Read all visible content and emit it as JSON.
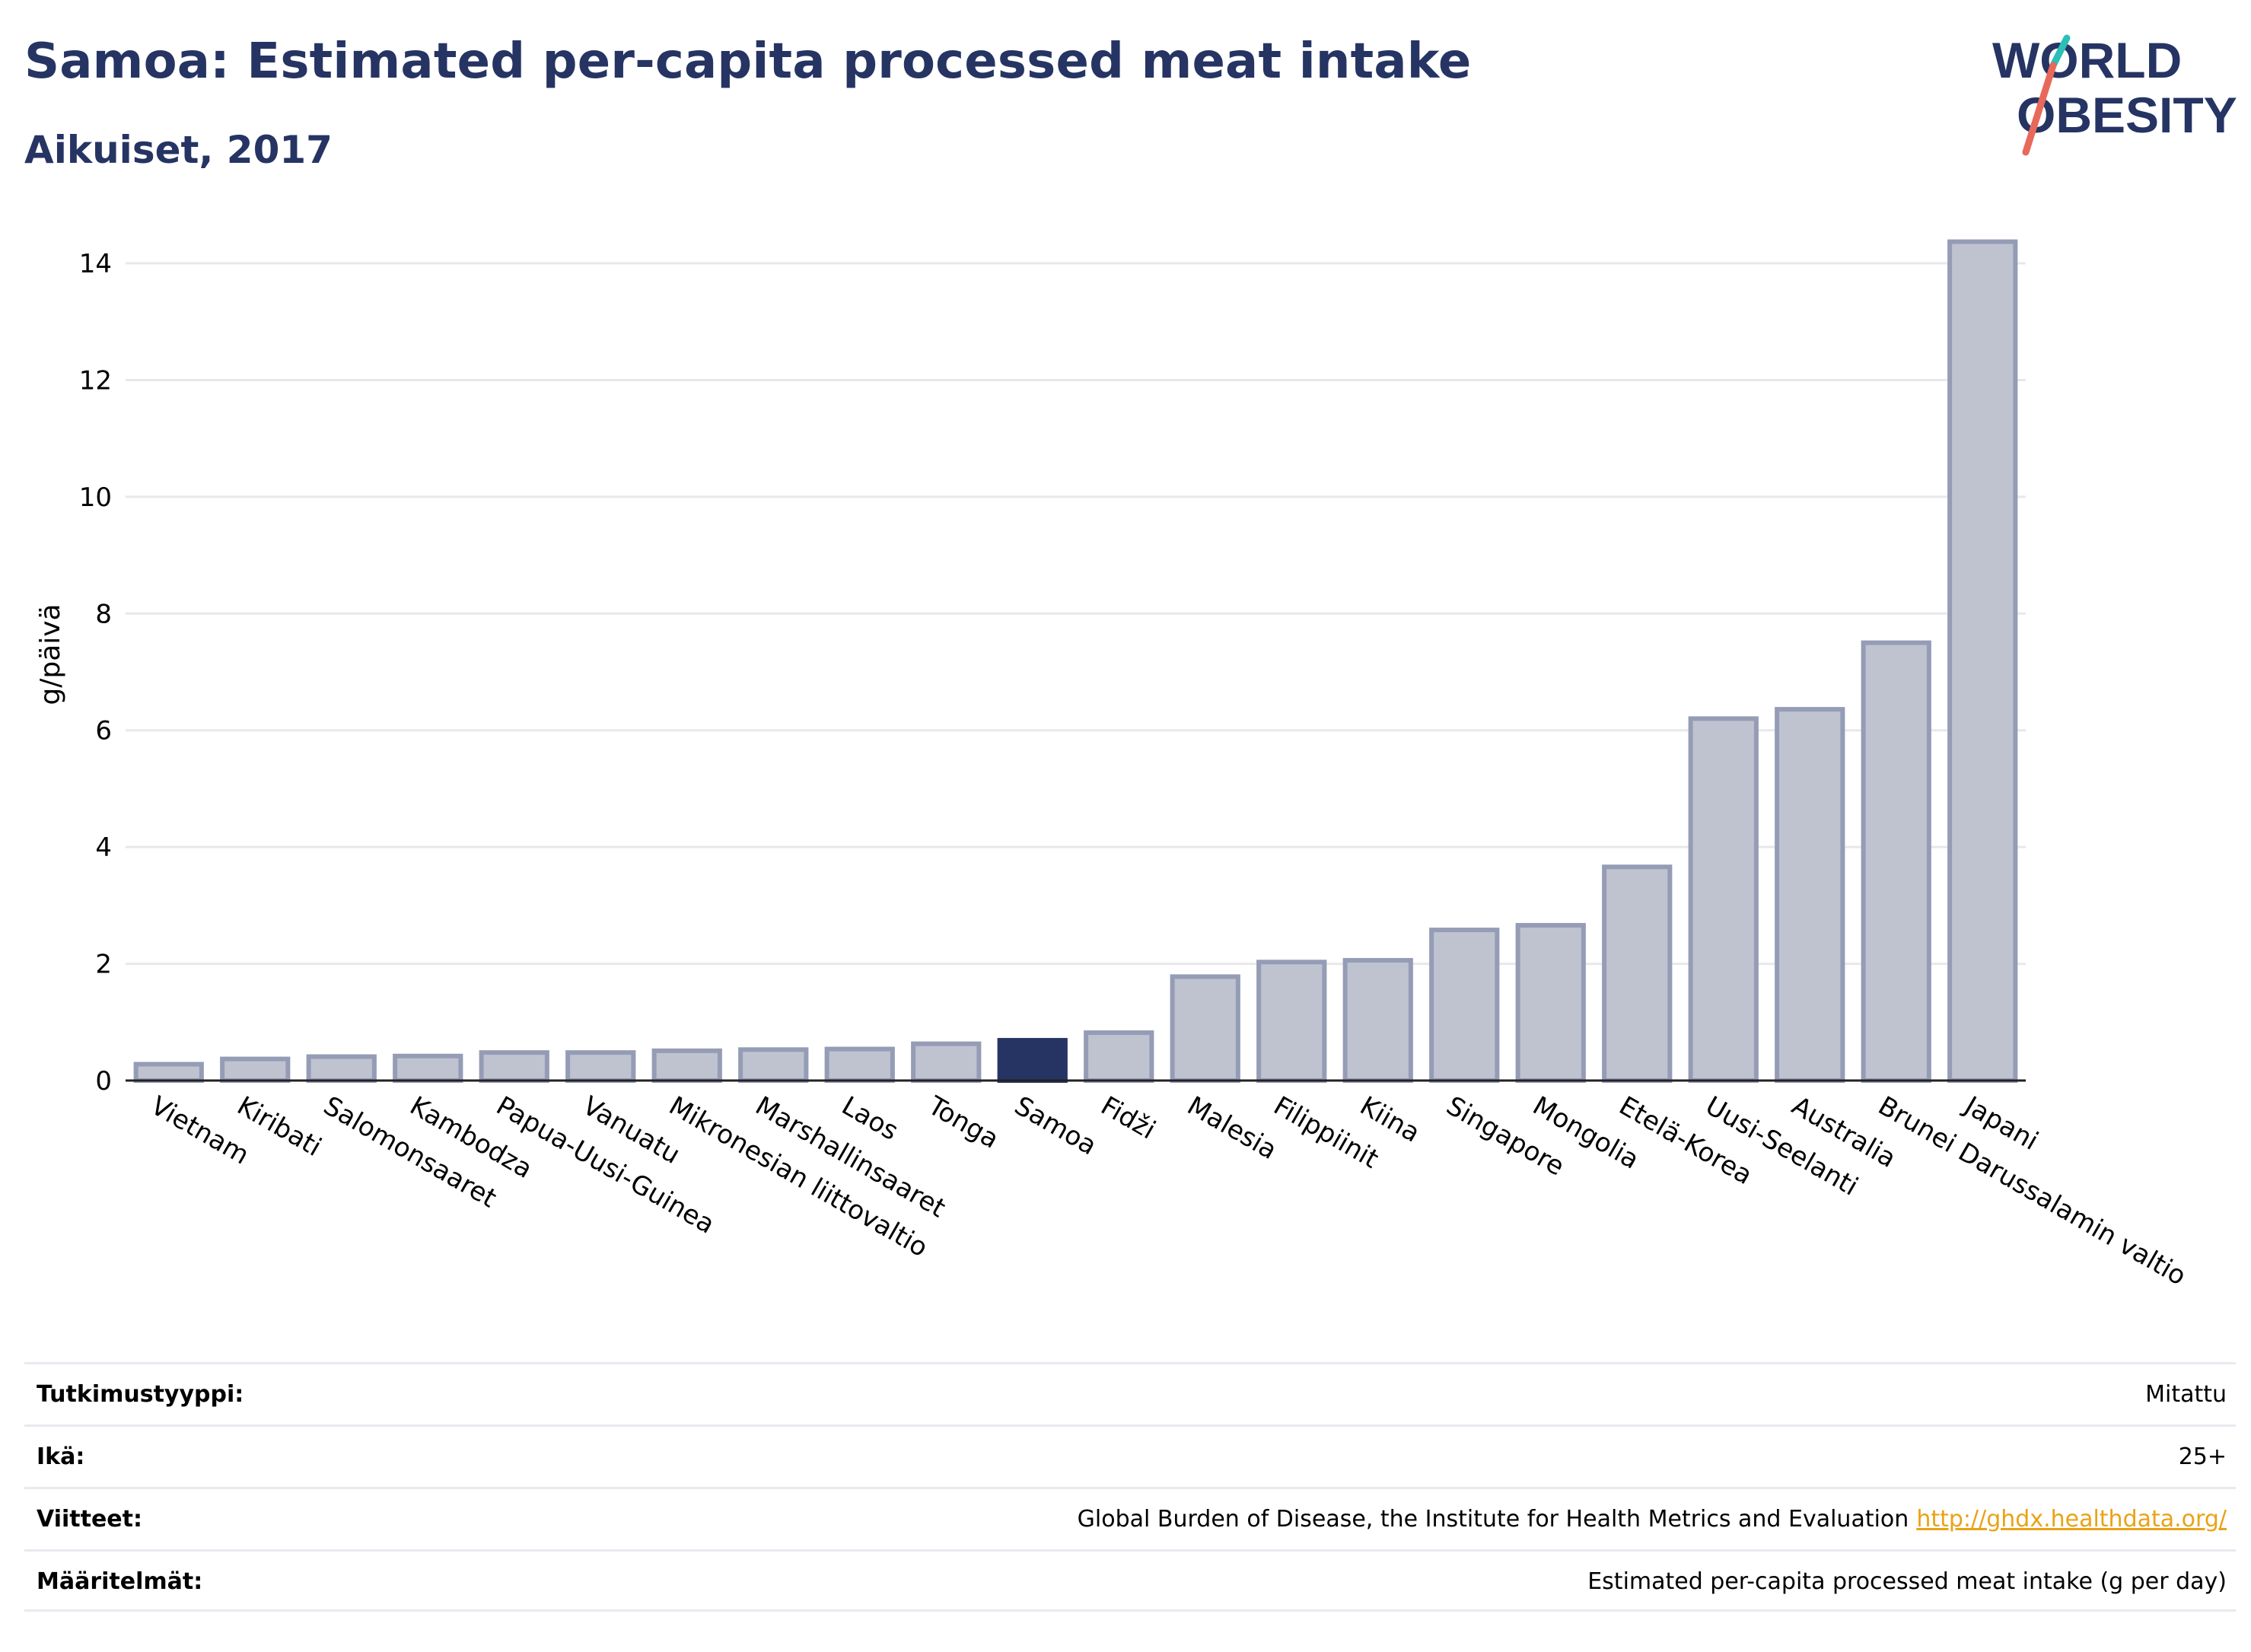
{
  "title": "Samoa: Estimated per-capita processed meat intake",
  "subtitle": "Aikuiset, 2017",
  "logo": {
    "line1": "WORLD",
    "line2": "OBESITY",
    "slash_colors": [
      "#2bbfb8",
      "#e8695a"
    ]
  },
  "colors": {
    "title": "#263463",
    "bar": "#bfc3d0",
    "bar_border": "#959cb5",
    "highlight": "#263463",
    "link": "#e8a317"
  },
  "chart_data": {
    "type": "bar",
    "ylabel": "g/päivä",
    "ylim": [
      0,
      14.6
    ],
    "yticks": [
      0,
      2,
      4,
      6,
      8,
      10,
      12,
      14
    ],
    "grid": true,
    "highlight_category": "Samoa",
    "categories": [
      "Vietnam",
      "Kiribati",
      "Salomonsaaret",
      "Kambodza",
      "Papua-Uusi-Guinea",
      "Vanuatu",
      "Mikronesian liittovaltio",
      "Marshallinsaaret",
      "Laos",
      "Tonga",
      "Samoa",
      "Fidži",
      "Malesia",
      "Filippiinit",
      "Kiina",
      "Singapore",
      "Mongolia",
      "Etelä-Korea",
      "Uusi-Seelanti",
      "Australia",
      "Brunei Darussalamin valtio",
      "Japani"
    ],
    "values": [
      0.28,
      0.37,
      0.41,
      0.42,
      0.48,
      0.48,
      0.51,
      0.53,
      0.54,
      0.63,
      0.69,
      0.82,
      1.78,
      2.03,
      2.06,
      2.58,
      2.66,
      3.66,
      6.2,
      6.36,
      7.5,
      14.37
    ]
  },
  "info": [
    {
      "label": "Tutkimustyyppi:",
      "value": "Mitattu",
      "link": ""
    },
    {
      "label": "Ikä:",
      "value": "25+",
      "link": ""
    },
    {
      "label": "Viitteet:",
      "value": "Global Burden of Disease, the Institute for Health Metrics and Evaluation",
      "link": "http://ghdx.healthdata.org/"
    },
    {
      "label": "Määritelmät:",
      "value": "Estimated per-capita processed meat intake (g per day)",
      "link": ""
    }
  ]
}
